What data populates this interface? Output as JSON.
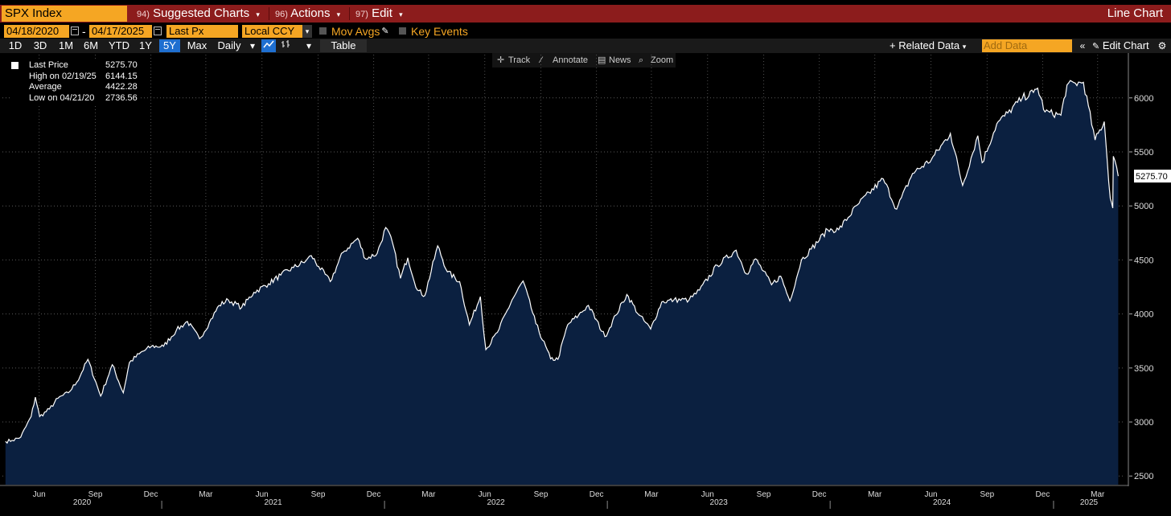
{
  "header": {
    "ticker": "SPX Index",
    "menus": [
      {
        "num": "94)",
        "label": "Suggested Charts"
      },
      {
        "num": "96)",
        "label": "Actions"
      },
      {
        "num": "97)",
        "label": "Edit"
      }
    ],
    "chart_type_label": "Line Chart"
  },
  "controls": {
    "start_date": "04/18/2020",
    "end_date": "04/17/2025",
    "dash": "-",
    "field": "Last Px",
    "currency": "Local CCY",
    "mov_avgs": "Mov Avgs",
    "key_events": "Key Events"
  },
  "timeframes": [
    "1D",
    "3D",
    "1M",
    "6M",
    "YTD",
    "1Y",
    "5Y",
    "Max"
  ],
  "active_timeframe": "5Y",
  "frequency": "Daily",
  "table_label": "Table",
  "related_data_label": "+ Related Data",
  "add_data_placeholder": "Add Data",
  "edit_chart_label": "Edit Chart",
  "chart_tools": [
    "Track",
    "Annotate",
    "News",
    "Zoom"
  ],
  "legend": {
    "last_price_label": "Last Price",
    "last_price": "5275.70",
    "high_label": "High on 02/19/25",
    "high": "6144.15",
    "avg_label": "Average",
    "avg": "4422.28",
    "low_label": "Low on 04/21/20",
    "low": "2736.56"
  },
  "colors": {
    "line": "#ffffff",
    "fill": "#0b2040",
    "accent": "#f5a623",
    "title_bar": "#8c1c1c",
    "active": "#1f6fd0"
  },
  "chart_data": {
    "type": "area",
    "series_name": "SPX Index Last Price",
    "x_ticks_months": [
      "Jun",
      "Sep",
      "Dec",
      "Mar",
      "Jun",
      "Sep",
      "Dec",
      "Mar",
      "Jun",
      "Sep",
      "Dec",
      "Mar",
      "Jun",
      "Sep",
      "Dec",
      "Mar",
      "Jun",
      "Sep",
      "Dec",
      "Mar"
    ],
    "x_ticks_years": [
      "2020",
      "2021",
      "2022",
      "2023",
      "2024",
      "2025"
    ],
    "y_ticks": [
      2500,
      3000,
      3500,
      4000,
      4500,
      5000,
      5500,
      6000
    ],
    "ylim": [
      2420,
      6400
    ],
    "last_value_label": "5275.70",
    "points": [
      [
        "2020-04-20",
        2820
      ],
      [
        "2020-05-01",
        2830
      ],
      [
        "2020-05-15",
        2860
      ],
      [
        "2020-06-01",
        3050
      ],
      [
        "2020-06-08",
        3230
      ],
      [
        "2020-06-15",
        3050
      ],
      [
        "2020-07-01",
        3120
      ],
      [
        "2020-07-15",
        3220
      ],
      [
        "2020-08-01",
        3270
      ],
      [
        "2020-08-15",
        3370
      ],
      [
        "2020-09-02",
        3580
      ],
      [
        "2020-09-23",
        3240
      ],
      [
        "2020-10-12",
        3530
      ],
      [
        "2020-10-30",
        3270
      ],
      [
        "2020-11-09",
        3550
      ],
      [
        "2020-11-25",
        3630
      ],
      [
        "2020-12-15",
        3700
      ],
      [
        "2021-01-04",
        3700
      ],
      [
        "2021-01-25",
        3850
      ],
      [
        "2021-02-12",
        3930
      ],
      [
        "2021-03-04",
        3770
      ],
      [
        "2021-03-20",
        3920
      ],
      [
        "2021-04-05",
        4080
      ],
      [
        "2021-04-20",
        4130
      ],
      [
        "2021-05-12",
        4060
      ],
      [
        "2021-06-01",
        4200
      ],
      [
        "2021-06-25",
        4280
      ],
      [
        "2021-07-15",
        4360
      ],
      [
        "2021-08-05",
        4430
      ],
      [
        "2021-08-25",
        4490
      ],
      [
        "2021-09-03",
        4540
      ],
      [
        "2021-09-15",
        4440
      ],
      [
        "2021-10-04",
        4300
      ],
      [
        "2021-10-25",
        4570
      ],
      [
        "2021-11-18",
        4700
      ],
      [
        "2021-12-01",
        4510
      ],
      [
        "2021-12-20",
        4560
      ],
      [
        "2022-01-03",
        4800
      ],
      [
        "2022-01-14",
        4660
      ],
      [
        "2022-01-27",
        4330
      ],
      [
        "2022-02-08",
        4520
      ],
      [
        "2022-02-24",
        4220
      ],
      [
        "2022-03-08",
        4170
      ],
      [
        "2022-03-29",
        4630
      ],
      [
        "2022-04-14",
        4390
      ],
      [
        "2022-05-04",
        4300
      ],
      [
        "2022-05-20",
        3900
      ],
      [
        "2022-06-07",
        4160
      ],
      [
        "2022-06-16",
        3670
      ],
      [
        "2022-07-05",
        3830
      ],
      [
        "2022-07-29",
        4130
      ],
      [
        "2022-08-16",
        4305
      ],
      [
        "2022-09-06",
        3910
      ],
      [
        "2022-09-30",
        3585
      ],
      [
        "2022-10-12",
        3580
      ],
      [
        "2022-10-28",
        3900
      ],
      [
        "2022-11-15",
        3990
      ],
      [
        "2022-12-01",
        4080
      ],
      [
        "2022-12-28",
        3790
      ],
      [
        "2023-01-15",
        3990
      ],
      [
        "2023-02-02",
        4180
      ],
      [
        "2023-02-22",
        3990
      ],
      [
        "2023-03-13",
        3860
      ],
      [
        "2023-03-31",
        4110
      ],
      [
        "2023-04-20",
        4130
      ],
      [
        "2023-05-15",
        4130
      ],
      [
        "2023-06-01",
        4220
      ],
      [
        "2023-06-30",
        4450
      ],
      [
        "2023-07-31",
        4590
      ],
      [
        "2023-08-17",
        4370
      ],
      [
        "2023-09-01",
        4510
      ],
      [
        "2023-09-27",
        4270
      ],
      [
        "2023-10-12",
        4350
      ],
      [
        "2023-10-27",
        4120
      ],
      [
        "2023-11-15",
        4500
      ],
      [
        "2023-12-01",
        4600
      ],
      [
        "2023-12-28",
        4780
      ],
      [
        "2024-01-15",
        4780
      ],
      [
        "2024-02-15",
        5010
      ],
      [
        "2024-03-28",
        5250
      ],
      [
        "2024-04-19",
        4970
      ],
      [
        "2024-05-15",
        5300
      ],
      [
        "2024-06-15",
        5430
      ],
      [
        "2024-07-16",
        5670
      ],
      [
        "2024-08-05",
        5190
      ],
      [
        "2024-08-30",
        5650
      ],
      [
        "2024-09-06",
        5400
      ],
      [
        "2024-09-30",
        5760
      ],
      [
        "2024-10-18",
        5860
      ],
      [
        "2024-11-11",
        6000
      ],
      [
        "2024-11-29",
        6050
      ],
      [
        "2024-12-06",
        6090
      ],
      [
        "2024-12-18",
        5870
      ],
      [
        "2025-01-13",
        5840
      ],
      [
        "2025-01-23",
        6120
      ],
      [
        "2025-02-19",
        6144
      ],
      [
        "2025-03-10",
        5610
      ],
      [
        "2025-03-25",
        5780
      ],
      [
        "2025-04-04",
        5070
      ],
      [
        "2025-04-08",
        4980
      ],
      [
        "2025-04-09",
        5460
      ],
      [
        "2025-04-17",
        5276
      ]
    ]
  }
}
